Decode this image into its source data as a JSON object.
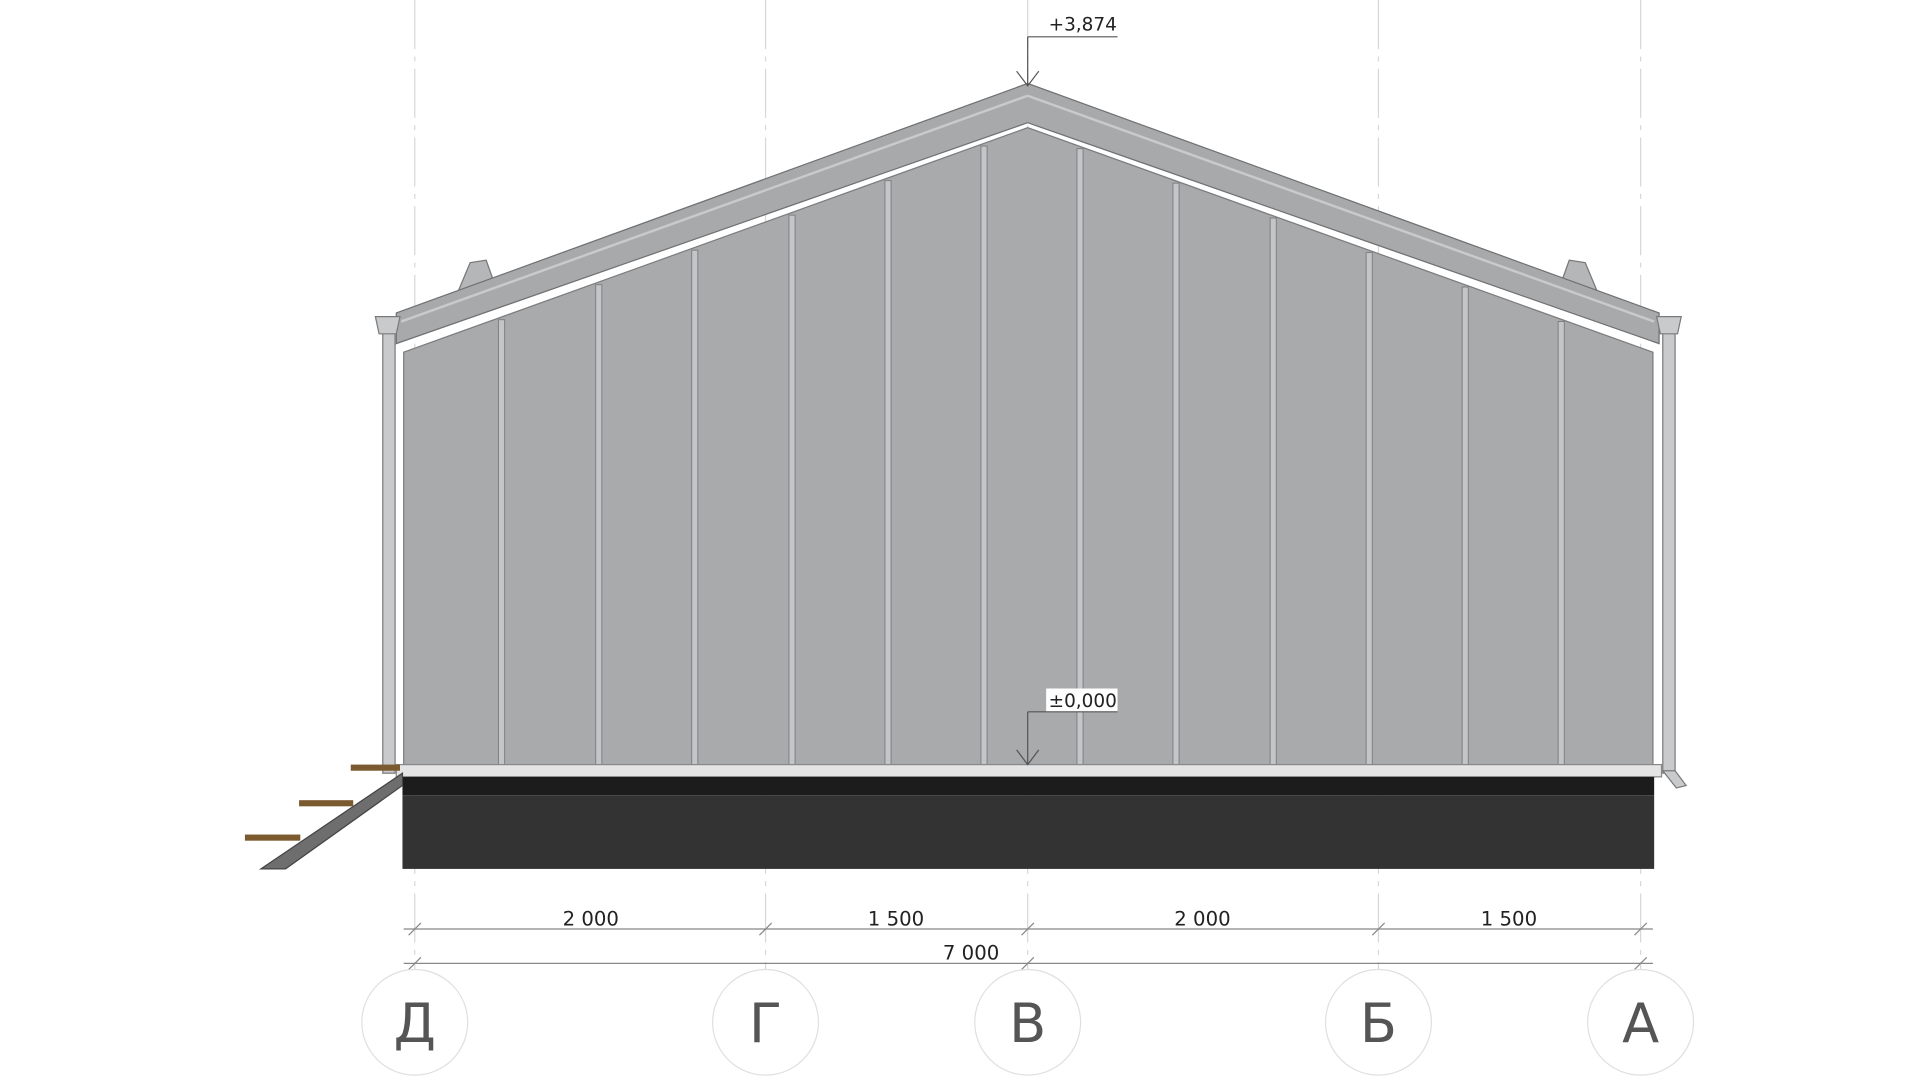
{
  "elevation_marks": {
    "ridge": "+3,874",
    "ground": "±0,000"
  },
  "dimensions": {
    "segments": [
      "2 000",
      "1 500",
      "2 000",
      "1 500"
    ],
    "total": "7 000"
  },
  "axes": [
    "Д",
    "Г",
    "В",
    "Б",
    "А"
  ],
  "colors": {
    "cladding": "#a9aaac",
    "batten": "#c4c5c7",
    "plinth": "#333333",
    "plinth_top": "#1c1c1c",
    "steps": "#7a5a2e"
  }
}
